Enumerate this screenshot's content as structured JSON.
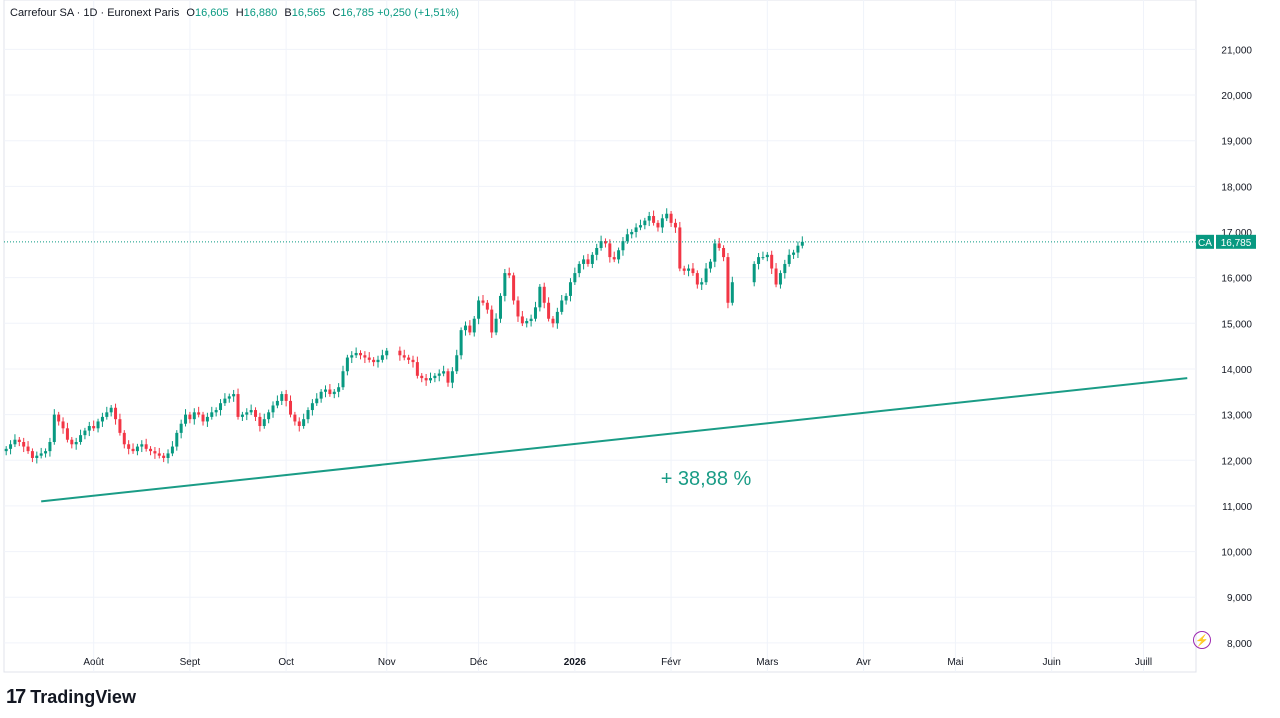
{
  "header": {
    "symbol": "Carrefour SA · 1D · Euronext Paris",
    "o_label": "O",
    "o_value": "16,605",
    "h_label": "H",
    "h_value": "16,880",
    "b_label": "B",
    "b_value": "16,565",
    "c_label": "C",
    "c_value": "16,785",
    "change": "+0,250 (+1,51%)"
  },
  "brand": {
    "mark": "17",
    "name": "TradingView"
  },
  "price_tag": {
    "ticker": "CA",
    "value": "16,785"
  },
  "annotation": {
    "text": "+ 38,88 %"
  },
  "colors": {
    "up": "#089981",
    "down": "#f23645",
    "trend": "#1a9c86",
    "grid": "#f0f3fa",
    "axis_text": "#131722"
  },
  "icons": {
    "bolt": "lightning-icon"
  },
  "chart_data": {
    "type": "candlestick",
    "title": "Carrefour SA · 1D · Euronext Paris",
    "ylim": [
      7.8,
      21.6
    ],
    "y_ticks": [
      "21,000",
      "20,000",
      "19,000",
      "18,000",
      "17,000",
      "16,000",
      "15,000",
      "14,000",
      "13,000",
      "12,000",
      "11,000",
      "10,000",
      "9,000",
      "8,000"
    ],
    "x_ticks": [
      "Août",
      "Sept",
      "Oct",
      "Nov",
      "Déc",
      "2026",
      "Févr",
      "Mars",
      "Avr",
      "Mai",
      "Juin",
      "Juill"
    ],
    "x_tick_index": [
      20,
      42,
      64,
      87,
      108,
      130,
      152,
      174,
      196,
      217,
      239,
      260
    ],
    "x_range": [
      -0.5,
      272
    ],
    "closes": [
      12.25,
      12.35,
      12.45,
      12.4,
      12.3,
      12.2,
      12.05,
      12.1,
      12.15,
      12.2,
      12.4,
      13.0,
      12.85,
      12.7,
      12.45,
      12.35,
      12.4,
      12.55,
      12.65,
      12.75,
      12.7,
      12.85,
      12.95,
      13.05,
      13.15,
      12.9,
      12.6,
      12.35,
      12.25,
      12.2,
      12.3,
      12.35,
      12.25,
      12.2,
      12.15,
      12.1,
      12.05,
      12.15,
      12.3,
      12.6,
      12.8,
      13.0,
      12.9,
      13.05,
      13.0,
      12.85,
      12.95,
      13.05,
      13.1,
      13.25,
      13.35,
      13.4,
      13.45,
      12.95,
      13.0,
      13.05,
      13.1,
      12.95,
      12.75,
      12.9,
      13.05,
      13.2,
      13.3,
      13.45,
      13.3,
      13.0,
      12.85,
      12.75,
      12.9,
      13.1,
      13.25,
      13.35,
      13.5,
      13.55,
      13.45,
      13.5,
      13.6,
      13.95,
      14.25,
      14.3,
      14.35,
      14.3,
      14.25,
      14.2,
      14.15,
      14.2,
      14.3,
      14.4,
      14.3,
      14.25,
      14.2,
      14.15,
      13.85,
      13.8,
      13.75,
      13.8,
      13.85,
      13.9,
      13.95,
      13.7,
      13.95,
      14.3,
      14.85,
      14.95,
      14.8,
      15.1,
      15.5,
      15.45,
      15.3,
      14.8,
      15.1,
      15.6,
      16.1,
      16.05,
      15.5,
      15.15,
      15.0,
      15.05,
      15.1,
      15.35,
      15.8,
      15.45,
      15.1,
      15.0,
      15.25,
      15.5,
      15.6,
      15.9,
      16.1,
      16.3,
      16.4,
      16.3,
      16.5,
      16.65,
      16.8,
      16.75,
      16.45,
      16.4,
      16.6,
      16.8,
      16.95,
      17.0,
      17.1,
      17.15,
      17.25,
      17.35,
      17.2,
      17.1,
      17.3,
      17.4,
      17.2,
      17.1,
      16.2,
      16.15,
      16.2,
      16.1,
      15.85,
      15.9,
      16.2,
      16.35,
      16.75,
      16.65,
      16.45,
      15.45,
      15.9,
      16.3,
      16.45,
      16.45,
      16.5,
      16.2,
      15.85,
      16.1,
      16.3,
      16.5,
      16.55,
      16.7,
      16.785
    ],
    "gaps": {
      "88": 2,
      "165": 4
    },
    "trend_line": {
      "x": [
        8,
        270
      ],
      "y": [
        11.1,
        13.8
      ]
    },
    "current_price": 16.785
  }
}
